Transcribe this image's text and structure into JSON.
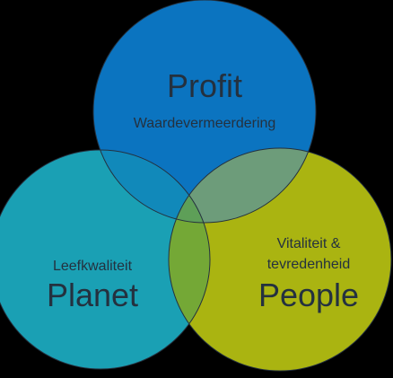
{
  "diagram": {
    "colors": {
      "profit": "#0b74c0",
      "planet": "#1aa0b4",
      "people": "#aab411",
      "overlap_profit_planet": "#1189ba",
      "overlap_profit_people": "#6d9c7a",
      "overlap_planet_people": "#74a836",
      "overlap_center": "#5e9f58",
      "outline": "#24313f",
      "text": "#24313f"
    },
    "circles": {
      "profit": {
        "title": "Profit",
        "subtitle": "Waardevermeerdering"
      },
      "planet": {
        "title": "Planet",
        "subtitle": "Leefkwaliteit"
      },
      "people": {
        "title": "People",
        "subtitle_line1": "Vitaliteit &",
        "subtitle_line2": "tevredenheid"
      }
    }
  }
}
